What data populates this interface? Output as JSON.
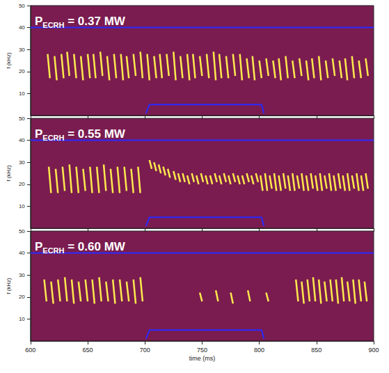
{
  "chart_data": [
    {
      "type": "spectrogram",
      "annotation": {
        "text": "P",
        "subscript": "ECRH",
        "suffix": " = 0.37 MW"
      },
      "ylabel": "f (kHz)",
      "xlim": [
        600,
        900
      ],
      "xticks": [
        600,
        650,
        700,
        750,
        800,
        850,
        900
      ],
      "ylim": [
        0,
        50
      ],
      "yticks": [
        10,
        20,
        30,
        40,
        50
      ],
      "grid": false,
      "tick_labels": "y",
      "series": [
        {
          "color": "#2a2aff",
          "x": [
            600,
            900
          ],
          "values": [
            40,
            40
          ]
        },
        {
          "color": "#2a2aff",
          "x": [
            701,
            704,
            802,
            804
          ],
          "values": [
            1,
            5,
            5,
            1
          ]
        }
      ],
      "bursts": {
        "color": "#ffe94d",
        "t": [
          615,
          621,
          627,
          632,
          638,
          644,
          650,
          655,
          661,
          667,
          673,
          679,
          684,
          690,
          696,
          702,
          708,
          713,
          719,
          725,
          731,
          737,
          742,
          748,
          754,
          760,
          765,
          771,
          777,
          783,
          789,
          794,
          800,
          806,
          812,
          817,
          823,
          829,
          835,
          841,
          846,
          852,
          858,
          864,
          870,
          875,
          881,
          887,
          893
        ],
        "t_end": [
          617,
          623,
          629,
          634,
          640,
          646,
          652,
          657,
          663,
          669,
          675,
          681,
          686,
          692,
          698,
          704,
          710,
          715,
          721,
          727,
          733,
          739,
          744,
          750,
          756,
          762,
          767,
          773,
          779,
          785,
          791,
          796,
          802,
          808,
          814,
          819,
          825,
          831,
          837,
          843,
          848,
          854,
          860,
          866,
          872,
          877,
          883,
          889,
          895
        ],
        "f_start": [
          28,
          27,
          28,
          29,
          28,
          27,
          28,
          28,
          29,
          27,
          28,
          28,
          27,
          28,
          29,
          28,
          27,
          28,
          28,
          29,
          27,
          28,
          28,
          27,
          28,
          29,
          28,
          27,
          28,
          28,
          26,
          27,
          25,
          26,
          25,
          26,
          27,
          25,
          26,
          25,
          26,
          27,
          25,
          26,
          25,
          26,
          27,
          25,
          26
        ],
        "f_end": [
          17,
          16,
          17,
          18,
          17,
          16,
          17,
          17,
          18,
          16,
          17,
          16,
          17,
          18,
          17,
          16,
          17,
          17,
          18,
          16,
          17,
          16,
          17,
          18,
          17,
          16,
          17,
          17,
          18,
          16,
          17,
          16,
          17,
          18,
          17,
          16,
          17,
          17,
          18,
          16,
          17,
          16,
          17,
          18,
          17,
          16,
          17,
          17,
          18
        ]
      }
    },
    {
      "type": "spectrogram",
      "annotation": {
        "text": "P",
        "subscript": "ECRH",
        "suffix": " = 0.55 MW"
      },
      "ylabel": "f (kHz)",
      "xlim": [
        600,
        900
      ],
      "xticks": [
        600,
        650,
        700,
        750,
        800,
        850,
        900
      ],
      "ylim": [
        0,
        50
      ],
      "yticks": [
        10,
        20,
        30,
        40,
        50
      ],
      "grid": false,
      "tick_labels": "y",
      "series": [
        {
          "color": "#2a2aff",
          "x": [
            600,
            900
          ],
          "values": [
            40,
            40
          ]
        },
        {
          "color": "#2a2aff",
          "x": [
            701,
            704,
            802,
            804
          ],
          "values": [
            1,
            5,
            5,
            1
          ]
        }
      ],
      "bursts": {
        "color": "#ffe94d",
        "t": [
          616,
          622,
          628,
          634,
          640,
          646,
          652,
          658,
          664,
          670,
          676,
          682,
          688,
          694,
          704,
          708,
          712,
          716,
          720,
          725,
          729,
          733,
          737,
          741,
          745,
          749,
          753,
          757,
          761,
          765,
          769,
          773,
          777,
          781,
          785,
          789,
          793,
          797,
          801,
          805,
          809,
          813,
          817,
          821,
          825,
          829,
          833,
          837,
          841,
          845,
          849,
          853,
          857,
          861,
          865,
          869,
          873,
          877,
          881,
          885,
          889,
          893
        ],
        "t_end": [
          618,
          624,
          630,
          636,
          642,
          648,
          654,
          660,
          666,
          672,
          678,
          684,
          690,
          696,
          706,
          710,
          714,
          718,
          722,
          727,
          731,
          735,
          739,
          743,
          747,
          751,
          755,
          759,
          763,
          767,
          771,
          775,
          779,
          783,
          787,
          791,
          795,
          799,
          803,
          807,
          811,
          815,
          819,
          823,
          827,
          831,
          835,
          839,
          843,
          847,
          851,
          855,
          859,
          863,
          867,
          871,
          875,
          879,
          883,
          887,
          891,
          895
        ],
        "f_start": [
          28,
          27,
          28,
          29,
          28,
          27,
          28,
          28,
          29,
          27,
          28,
          28,
          27,
          28,
          31,
          30,
          29,
          28,
          27,
          26,
          25,
          25,
          24,
          25,
          24,
          25,
          24,
          24,
          25,
          24,
          25,
          24,
          25,
          24,
          24,
          25,
          24,
          25,
          24,
          25,
          24,
          25,
          24,
          25,
          24,
          25,
          24,
          25,
          24,
          25,
          24,
          25,
          24,
          25,
          24,
          25,
          24,
          25,
          24,
          25,
          24,
          25
        ],
        "f_end": [
          16,
          16,
          17,
          16,
          16,
          17,
          16,
          16,
          17,
          16,
          16,
          17,
          16,
          16,
          27,
          26,
          25,
          24,
          23,
          22,
          21,
          21,
          20,
          21,
          20,
          21,
          20,
          20,
          21,
          20,
          21,
          20,
          21,
          20,
          20,
          21,
          20,
          21,
          17,
          17,
          18,
          17,
          17,
          18,
          17,
          17,
          18,
          17,
          17,
          18,
          17,
          17,
          18,
          17,
          17,
          18,
          17,
          17,
          18,
          17,
          17,
          18
        ]
      }
    },
    {
      "type": "spectrogram",
      "annotation": {
        "text": "P",
        "subscript": "ECRH",
        "suffix": " = 0.60 MW"
      },
      "ylabel": "f (kHz)",
      "xlabel": "time (ms)",
      "xlim": [
        600,
        900
      ],
      "xticks": [
        600,
        650,
        700,
        750,
        800,
        850,
        900
      ],
      "ylim": [
        0,
        50
      ],
      "yticks": [
        10,
        20,
        30,
        40,
        50
      ],
      "grid": false,
      "series": [
        {
          "color": "#2a2aff",
          "x": [
            600,
            900
          ],
          "values": [
            40,
            40
          ]
        },
        {
          "color": "#2a2aff",
          "x": [
            701,
            704,
            802,
            804
          ],
          "values": [
            1,
            5,
            5,
            1
          ]
        }
      ],
      "bursts": {
        "color": "#ffe94d",
        "t": [
          612,
          618,
          624,
          630,
          636,
          642,
          648,
          654,
          660,
          666,
          672,
          678,
          684,
          690,
          696,
          748,
          762,
          775,
          790,
          806,
          832,
          837,
          842,
          847,
          852,
          857,
          862,
          867,
          872,
          877,
          882,
          887,
          892
        ],
        "t_end": [
          614,
          620,
          626,
          632,
          638,
          644,
          650,
          656,
          662,
          668,
          674,
          680,
          686,
          692,
          698,
          750,
          764,
          777,
          792,
          808,
          834,
          839,
          844,
          849,
          854,
          859,
          864,
          869,
          874,
          879,
          884,
          889,
          894
        ],
        "f_start": [
          28,
          27,
          28,
          29,
          28,
          27,
          28,
          28,
          29,
          27,
          28,
          28,
          27,
          28,
          29,
          22,
          23,
          22,
          23,
          22,
          28,
          27,
          28,
          29,
          28,
          27,
          28,
          28,
          29,
          27,
          28,
          28,
          27
        ],
        "f_end": [
          18,
          17,
          18,
          18,
          17,
          18,
          18,
          17,
          18,
          18,
          17,
          18,
          18,
          17,
          18,
          18,
          18,
          17,
          18,
          18,
          18,
          17,
          18,
          18,
          17,
          18,
          18,
          17,
          18,
          18,
          17,
          18,
          18
        ]
      }
    }
  ]
}
